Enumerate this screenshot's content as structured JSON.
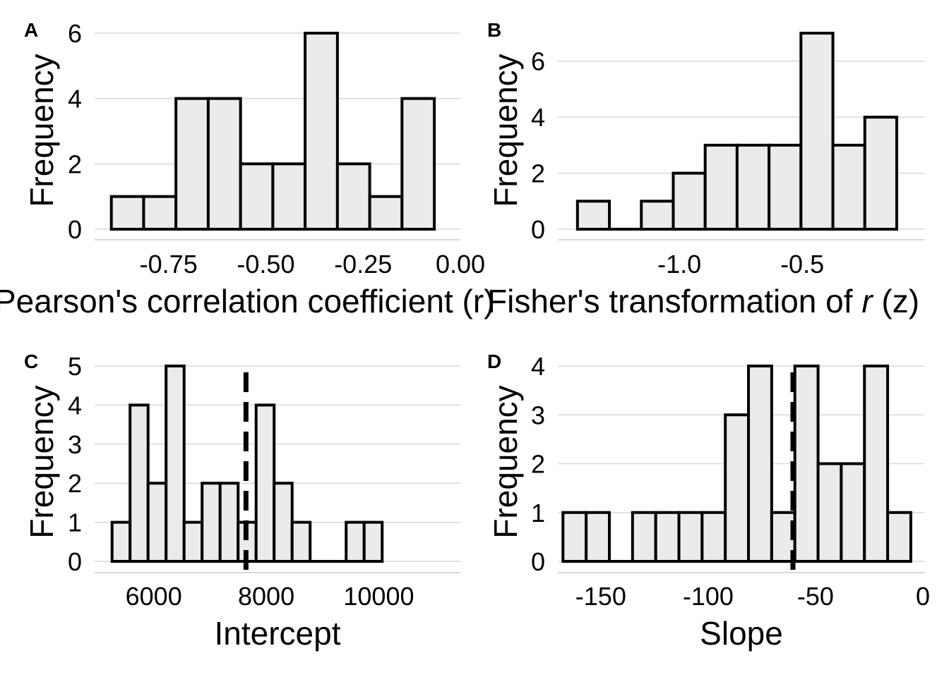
{
  "chart_data": [
    {
      "type": "bar",
      "panel_label": "A",
      "xlabel": "Pearson's correlation coefficient (r)",
      "ylabel": "Frequency",
      "xlim": [
        -0.94,
        0.0
      ],
      "ylim": [
        0,
        6
      ],
      "xticks": [
        -0.75,
        -0.5,
        -0.25,
        0.0
      ],
      "xtick_labels": [
        "-0.75",
        "-0.50",
        "-0.25",
        "0.00"
      ],
      "yticks": [
        0,
        2,
        4,
        6
      ],
      "ytick_labels": [
        "0",
        "2",
        "4",
        "6"
      ],
      "bin_width": 0.083,
      "bin_start": -0.897,
      "values": [
        1,
        1,
        4,
        4,
        2,
        2,
        6,
        2,
        1,
        4
      ],
      "grid": "horizontal",
      "vline": null
    },
    {
      "type": "bar",
      "panel_label": "B",
      "xlabel": "Fisher's transformation of r (z)",
      "xlabel_emph": "r",
      "ylabel": "Frequency",
      "xlim": [
        -1.495,
        0.0
      ],
      "ylim": [
        0,
        7
      ],
      "xticks": [
        -1.0,
        -0.5
      ],
      "xtick_labels": [
        "-1.0",
        "-0.5"
      ],
      "yticks": [
        0,
        2,
        4,
        6
      ],
      "ytick_labels": [
        "0",
        "2",
        "4",
        "6"
      ],
      "bin_width": 0.13,
      "bin_start": -1.415,
      "values": [
        1,
        0,
        1,
        2,
        3,
        3,
        3,
        7,
        3,
        4
      ],
      "grid": "horizontal",
      "vline": null
    },
    {
      "type": "bar",
      "panel_label": "C",
      "xlabel": "Intercept",
      "ylabel": "Frequency",
      "xlim": [
        4950,
        11450
      ],
      "ylim": [
        0,
        5
      ],
      "xticks": [
        6000,
        8000,
        10000
      ],
      "xtick_labels": [
        "6000",
        "8000",
        "10000"
      ],
      "yticks": [
        0,
        1,
        2,
        3,
        4,
        5
      ],
      "ytick_labels": [
        "0",
        "1",
        "2",
        "3",
        "4",
        "5"
      ],
      "bin_width": 320,
      "bin_start": 5260,
      "values": [
        1,
        4,
        2,
        5,
        1,
        2,
        2,
        1,
        4,
        2,
        1,
        0,
        0,
        1,
        1
      ],
      "grid": "horizontal",
      "vline": 7640
    },
    {
      "type": "bar",
      "panel_label": "D",
      "xlabel": "Slope",
      "ylabel": "Frequency",
      "xlim": [
        -170,
        1
      ],
      "ylim": [
        0,
        4
      ],
      "xticks": [
        -150,
        -100,
        -50,
        0
      ],
      "xtick_labels": [
        "-150",
        "-100",
        "-50",
        "0"
      ],
      "yticks": [
        0,
        1,
        2,
        3,
        4
      ],
      "ytick_labels": [
        "0",
        "1",
        "2",
        "3",
        "4"
      ],
      "bin_width": 10.8,
      "bin_start": -167.6,
      "values": [
        1,
        1,
        0,
        1,
        1,
        1,
        1,
        3,
        4,
        1,
        4,
        2,
        2,
        4,
        1
      ],
      "grid": "horizontal",
      "vline": -60.5
    }
  ],
  "colors": {
    "bar_fill": "#ebebeb",
    "bar_stroke": "#000000",
    "grid": "#d9d9d9",
    "vline": "#000000"
  }
}
